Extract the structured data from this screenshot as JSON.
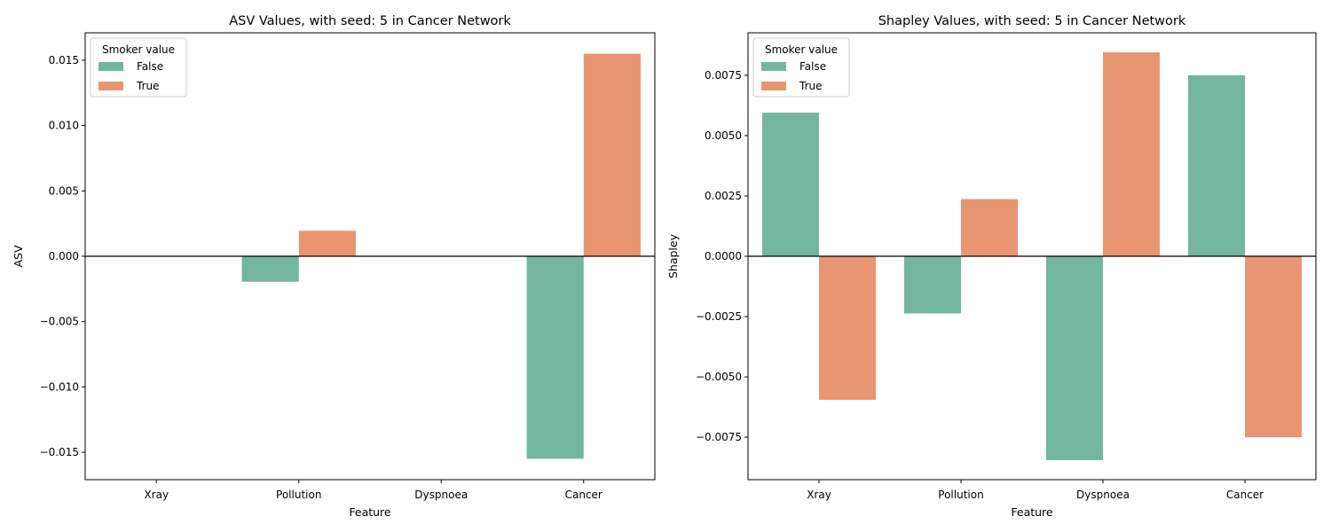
{
  "colors": {
    "False": "#73b6a0",
    "True": "#e89672"
  },
  "chart_data": [
    {
      "type": "bar",
      "title": "ASV Values, with seed: 5 in Cancer Network",
      "xlabel": "Feature",
      "ylabel": "ASV",
      "categories": [
        "Xray",
        "Pollution",
        "Dyspnoea",
        "Cancer"
      ],
      "ylim": [
        -0.0171,
        0.0171
      ],
      "yticks": [
        -0.015,
        -0.01,
        -0.005,
        0.0,
        0.005,
        0.01,
        0.015
      ],
      "ytick_labels": [
        "−0.015",
        "−0.010",
        "−0.005",
        "0.000",
        "0.005",
        "0.010",
        "0.015"
      ],
      "legend": {
        "title": "Smoker value",
        "position": "top-left"
      },
      "series": [
        {
          "name": "False",
          "values": [
            0.0,
            -0.00195,
            0.0,
            -0.0155
          ]
        },
        {
          "name": "True",
          "values": [
            0.0,
            0.00195,
            0.0,
            0.0155
          ]
        }
      ]
    },
    {
      "type": "bar",
      "title": "Shapley Values, with seed: 5 in Cancer Network",
      "xlabel": "Feature",
      "ylabel": "Shapley",
      "categories": [
        "Xray",
        "Pollution",
        "Dyspnoea",
        "Cancer"
      ],
      "ylim": [
        -0.00926,
        0.00926
      ],
      "yticks": [
        -0.0075,
        -0.005,
        -0.0025,
        0.0,
        0.0025,
        0.005,
        0.0075
      ],
      "ytick_labels": [
        "−0.0075",
        "−0.0050",
        "−0.0025",
        "0.0000",
        "0.0025",
        "0.0050",
        "0.0075"
      ],
      "legend": {
        "title": "Smoker value",
        "position": "top-left"
      },
      "series": [
        {
          "name": "False",
          "values": [
            0.00595,
            -0.00237,
            -0.00845,
            0.0075
          ]
        },
        {
          "name": "True",
          "values": [
            -0.00595,
            0.00237,
            0.00845,
            -0.0075
          ]
        }
      ]
    }
  ]
}
